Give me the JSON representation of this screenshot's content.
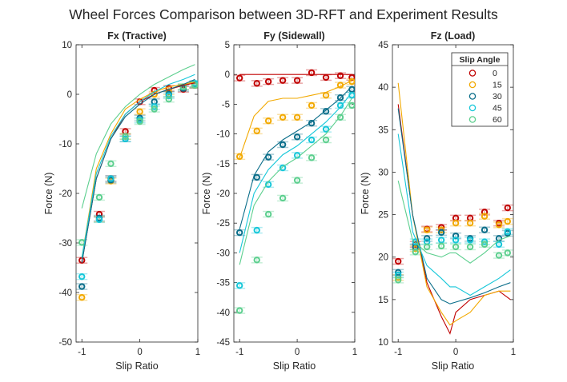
{
  "title": "Wheel Forces Comparison between 3D-RFT and Experiment Results",
  "legend": {
    "title": "Slip Angle",
    "placement": "top-right of third panel",
    "entries": [
      "0",
      "15",
      "30",
      "45",
      "60"
    ]
  },
  "colors": {
    "0": "#c00000",
    "15": "#f2a900",
    "30": "#0b6e8a",
    "45": "#16c7d9",
    "60": "#5ccf8e"
  },
  "chart_data": [
    {
      "type": "line",
      "title": "Fx (Tractive)",
      "xlabel": "Slip Ratio",
      "ylabel": "Force (N)",
      "xlim": [
        -1.1,
        1
      ],
      "ylim": [
        -50,
        10
      ],
      "xticks": [
        "-1",
        "0",
        "1"
      ],
      "yticks": [
        "10",
        "0",
        "-10",
        "-20",
        "-30",
        "-40",
        "-50"
      ],
      "model_x": [
        -1,
        -0.75,
        -0.5,
        -0.25,
        0,
        0.25,
        0.5,
        0.75,
        0.95
      ],
      "model_series": [
        {
          "name": "0",
          "values": [
            -34,
            -17,
            -9,
            -4,
            -1.5,
            0,
            1,
            1.8,
            2.3
          ]
        },
        {
          "name": "15",
          "values": [
            -33,
            -15,
            -8,
            -3,
            -1,
            0.5,
            1.5,
            2,
            2.5
          ]
        },
        {
          "name": "30",
          "values": [
            -34,
            -17,
            -9,
            -4.5,
            -2,
            0,
            1,
            2,
            3
          ]
        },
        {
          "name": "45",
          "values": [
            -33,
            -16,
            -8.5,
            -4,
            -1.5,
            0.5,
            2,
            3,
            4
          ]
        },
        {
          "name": "60",
          "values": [
            -23,
            -12,
            -6,
            -2.5,
            0,
            2,
            3.5,
            5,
            6
          ]
        }
      ],
      "exp_x": [
        -1,
        -0.7,
        -0.5,
        -0.25,
        0,
        0.25,
        0.5,
        0.75,
        0.95
      ],
      "exp_series": [
        {
          "name": "0",
          "values": [
            -33.5,
            -24.2,
            -17,
            -7.5,
            -1.5,
            0.8,
            1.2,
            1,
            1.8
          ]
        },
        {
          "name": "15",
          "values": [
            -41,
            -25.2,
            -17.5,
            -8.5,
            -3.5,
            0,
            0.5,
            1.5,
            2
          ]
        },
        {
          "name": "30",
          "values": [
            -38.8,
            -25,
            -17.3,
            -9,
            -4.8,
            -1.5,
            0,
            1.2,
            2
          ]
        },
        {
          "name": "45",
          "values": [
            -36.8,
            -25.3,
            -17,
            -9,
            -5.2,
            -2.5,
            -0.3,
            1.5,
            2.2
          ]
        },
        {
          "name": "60",
          "values": [
            -29.9,
            -20.8,
            -14,
            -8.5,
            -5.5,
            -3,
            -1,
            1.5,
            1.8
          ]
        }
      ]
    },
    {
      "type": "line",
      "title": "Fy (Sidewall)",
      "xlabel": "Slip Ratio",
      "ylabel": "Force (N)",
      "xlim": [
        -1.1,
        1
      ],
      "ylim": [
        -45,
        5
      ],
      "xticks": [
        "-1",
        "0",
        "1"
      ],
      "yticks": [
        "5",
        "0",
        "-5",
        "-10",
        "-15",
        "-20",
        "-25",
        "-30",
        "-35",
        "-40",
        "-45"
      ],
      "model_x": [
        -1,
        -0.75,
        -0.5,
        -0.25,
        0,
        0.25,
        0.5,
        0.75,
        0.95
      ],
      "model_series": [
        {
          "name": "0",
          "values": [
            0,
            0,
            0,
            0,
            0,
            0,
            0,
            0,
            0
          ]
        },
        {
          "name": "15",
          "values": [
            -14,
            -7,
            -4.5,
            -4,
            -4,
            -3.5,
            -3,
            -2,
            -1
          ]
        },
        {
          "name": "30",
          "values": [
            -26,
            -17,
            -13,
            -11,
            -9.5,
            -8,
            -6,
            -4,
            -2
          ]
        },
        {
          "name": "45",
          "values": [
            -30,
            -20,
            -16,
            -13.5,
            -12,
            -10,
            -8,
            -5.5,
            -3
          ]
        },
        {
          "name": "60",
          "values": [
            -32,
            -22,
            -18,
            -15.5,
            -14,
            -12,
            -10,
            -7,
            -4
          ]
        }
      ],
      "exp_x": [
        -1,
        -0.7,
        -0.5,
        -0.25,
        0,
        0.25,
        0.5,
        0.75,
        0.95
      ],
      "exp_series": [
        {
          "name": "0",
          "values": [
            -0.6,
            -1.5,
            -1.2,
            -1,
            -1,
            0.3,
            -0.5,
            -0.2,
            -0.5
          ]
        },
        {
          "name": "15",
          "values": [
            -13.8,
            -9.5,
            -7.8,
            -7.2,
            -7.2,
            -5.2,
            -3.5,
            -1.8,
            -1.2
          ]
        },
        {
          "name": "30",
          "values": [
            -26.6,
            -17.3,
            -13.9,
            -11.8,
            -10.5,
            -8.2,
            -6.2,
            -3.9,
            -2.5
          ]
        },
        {
          "name": "45",
          "values": [
            -35.5,
            -26.2,
            -18.5,
            -15.7,
            -13.6,
            -11,
            -9.2,
            -5.2,
            -3.5
          ]
        },
        {
          "name": "60",
          "values": [
            -39.7,
            -31.2,
            -23.5,
            -20.8,
            -17.8,
            -14,
            -11,
            -7.2,
            -5.2
          ]
        }
      ]
    },
    {
      "type": "line",
      "title": "Fz (Load)",
      "xlabel": "Slip Ratio",
      "ylabel": "Force (N)",
      "xlim": [
        -1.1,
        1
      ],
      "ylim": [
        10,
        45
      ],
      "xticks": [
        "-1",
        "0",
        "1"
      ],
      "yticks": [
        "45",
        "40",
        "35",
        "30",
        "25",
        "20",
        "15",
        "10"
      ],
      "model_x": [
        -1,
        -0.75,
        -0.5,
        -0.25,
        -0.1,
        0,
        0.25,
        0.5,
        0.75,
        0.95
      ],
      "model_series": [
        {
          "name": "0",
          "values": [
            38,
            25,
            17,
            13,
            11,
            13.5,
            15,
            15.5,
            16,
            15
          ]
        },
        {
          "name": "15",
          "values": [
            40.5,
            25,
            16.5,
            13.5,
            12,
            12.5,
            13.5,
            15.5,
            16,
            16
          ]
        },
        {
          "name": "30",
          "values": [
            37.5,
            25,
            17.5,
            15,
            14.5,
            14.7,
            15.2,
            15.8,
            16.5,
            17
          ]
        },
        {
          "name": "45",
          "values": [
            34.5,
            23,
            19,
            17.5,
            16.5,
            16.5,
            15.5,
            16.5,
            17.5,
            18.5
          ]
        },
        {
          "name": "60",
          "values": [
            29,
            22,
            20.5,
            20,
            20.5,
            20.5,
            19.3,
            20.5,
            22,
            22.5
          ]
        }
      ],
      "exp_x": [
        -1,
        -0.7,
        -0.5,
        -0.25,
        0,
        0.25,
        0.5,
        0.75,
        0.9
      ],
      "exp_series": [
        {
          "name": "0",
          "values": [
            19.5,
            21.5,
            23.3,
            23.5,
            24.6,
            24.6,
            25.3,
            24,
            25.8
          ]
        },
        {
          "name": "15",
          "values": [
            17.6,
            21,
            23.2,
            23.2,
            24,
            24,
            24.8,
            23.8,
            24.2
          ]
        },
        {
          "name": "30",
          "values": [
            18.2,
            21.2,
            22.2,
            22.9,
            22.5,
            22.2,
            23.2,
            22.2,
            22.8
          ]
        },
        {
          "name": "45",
          "values": [
            17.9,
            21.8,
            21.8,
            22,
            22,
            22,
            21.8,
            21.5,
            23
          ]
        },
        {
          "name": "60",
          "values": [
            17.3,
            20.6,
            21.2,
            21.3,
            21.2,
            21.2,
            21.5,
            20.2,
            20.5
          ]
        }
      ]
    }
  ]
}
